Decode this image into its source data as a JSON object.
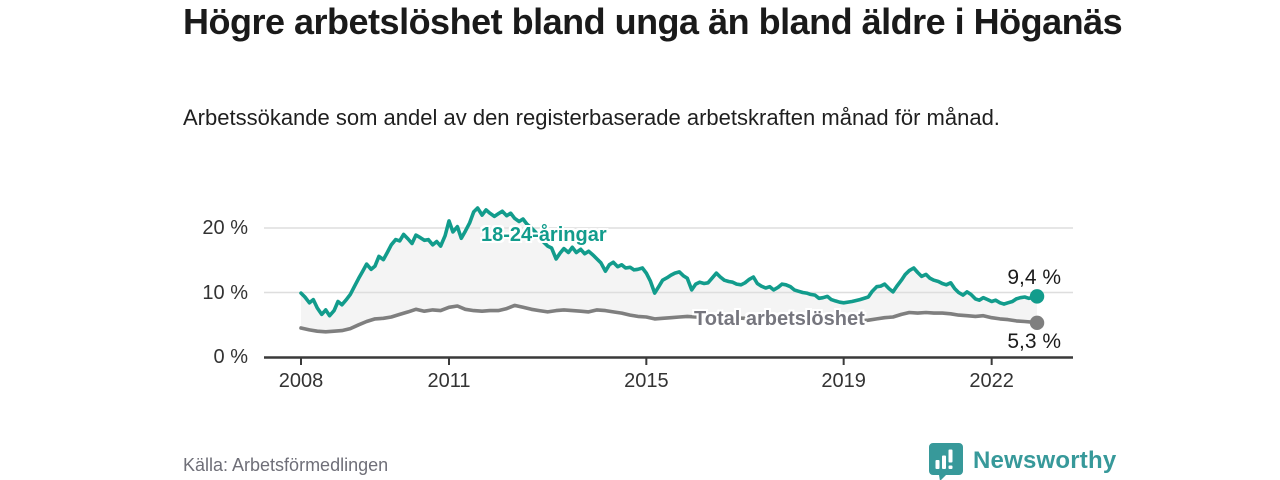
{
  "header": {
    "title": "Högre arbetslöshet bland unga än bland äldre i Höganäs",
    "subtitle": "Arbetssökande som andel av den registerbaserade arbetskraften månad för månad."
  },
  "footer": {
    "source": "Källa: Arbetsförmedlingen",
    "brand": "Newsworthy",
    "brand_color": "#37999a"
  },
  "colors": {
    "accent_teal": "#129c8c",
    "line_gray": "#7f7f7f",
    "fill_between": "#f4f4f4",
    "grid": "#dedede",
    "axis": "#3a3a3a"
  },
  "chart_data": {
    "type": "line",
    "title": "Högre arbetslöshet bland unga än bland äldre i Höganäs",
    "subtitle": "Arbetssökande som andel av den registerbaserade arbetskraften månad för månad.",
    "xlabel": "",
    "ylabel": "%",
    "grid": "horizontal",
    "legend_position": "inline-labels",
    "x_axis": {
      "ticks": [
        2008,
        2011,
        2015,
        2019,
        2022
      ],
      "tick_labels": [
        "2008",
        "2011",
        "2015",
        "2019",
        "2022"
      ],
      "range": [
        2007.25,
        2023.65
      ]
    },
    "y_axis": {
      "ticks": [
        0,
        10,
        20
      ],
      "tick_labels": [
        "0 %",
        "10 %",
        "20 %"
      ],
      "range": [
        0,
        23.5
      ]
    },
    "fill_between": "#f4f4f4",
    "series": [
      {
        "name": "18-24-åringar",
        "color": "#129c8c",
        "end_label": "9,4 %",
        "end_value": 9.4,
        "points": [
          [
            2008.0,
            9.9
          ],
          [
            2008.08,
            9.3
          ],
          [
            2008.17,
            8.4
          ],
          [
            2008.25,
            8.9
          ],
          [
            2008.33,
            7.6
          ],
          [
            2008.42,
            6.6
          ],
          [
            2008.5,
            7.3
          ],
          [
            2008.58,
            6.4
          ],
          [
            2008.67,
            7.2
          ],
          [
            2008.75,
            8.6
          ],
          [
            2008.83,
            8.1
          ],
          [
            2008.92,
            8.9
          ],
          [
            2009.0,
            9.7
          ],
          [
            2009.08,
            10.9
          ],
          [
            2009.17,
            12.2
          ],
          [
            2009.25,
            13.3
          ],
          [
            2009.33,
            14.4
          ],
          [
            2009.42,
            13.6
          ],
          [
            2009.5,
            14.1
          ],
          [
            2009.58,
            15.6
          ],
          [
            2009.67,
            15.1
          ],
          [
            2009.75,
            16.2
          ],
          [
            2009.83,
            17.4
          ],
          [
            2009.92,
            18.2
          ],
          [
            2010.0,
            18.0
          ],
          [
            2010.08,
            19.0
          ],
          [
            2010.17,
            18.3
          ],
          [
            2010.25,
            17.6
          ],
          [
            2010.33,
            18.9
          ],
          [
            2010.42,
            18.5
          ],
          [
            2010.5,
            18.1
          ],
          [
            2010.58,
            18.2
          ],
          [
            2010.67,
            17.4
          ],
          [
            2010.75,
            17.9
          ],
          [
            2010.83,
            17.2
          ],
          [
            2010.92,
            18.8
          ],
          [
            2011.0,
            21.1
          ],
          [
            2011.08,
            19.4
          ],
          [
            2011.17,
            20.2
          ],
          [
            2011.25,
            18.4
          ],
          [
            2011.33,
            19.5
          ],
          [
            2011.42,
            20.8
          ],
          [
            2011.5,
            22.5
          ],
          [
            2011.58,
            23.1
          ],
          [
            2011.67,
            22.0
          ],
          [
            2011.75,
            22.8
          ],
          [
            2011.83,
            22.3
          ],
          [
            2011.92,
            21.8
          ],
          [
            2012.0,
            22.2
          ],
          [
            2012.08,
            22.6
          ],
          [
            2012.17,
            21.9
          ],
          [
            2012.25,
            22.3
          ],
          [
            2012.33,
            21.5
          ],
          [
            2012.42,
            21.0
          ],
          [
            2012.5,
            21.4
          ],
          [
            2012.58,
            20.6
          ],
          [
            2012.67,
            20.0
          ],
          [
            2012.75,
            19.4
          ],
          [
            2012.83,
            18.6
          ],
          [
            2012.92,
            17.8
          ],
          [
            2013.0,
            17.2
          ],
          [
            2013.08,
            16.9
          ],
          [
            2013.17,
            15.2
          ],
          [
            2013.25,
            16.1
          ],
          [
            2013.33,
            16.8
          ],
          [
            2013.42,
            16.2
          ],
          [
            2013.5,
            17.0
          ],
          [
            2013.58,
            16.2
          ],
          [
            2013.67,
            16.7
          ],
          [
            2013.75,
            16.0
          ],
          [
            2013.83,
            16.4
          ],
          [
            2013.92,
            15.8
          ],
          [
            2014.0,
            15.2
          ],
          [
            2014.08,
            14.6
          ],
          [
            2014.17,
            13.3
          ],
          [
            2014.25,
            14.3
          ],
          [
            2014.33,
            14.7
          ],
          [
            2014.42,
            14.0
          ],
          [
            2014.5,
            14.3
          ],
          [
            2014.58,
            13.8
          ],
          [
            2014.67,
            13.9
          ],
          [
            2014.75,
            13.5
          ],
          [
            2014.83,
            13.6
          ],
          [
            2014.92,
            13.8
          ],
          [
            2015.0,
            13.0
          ],
          [
            2015.08,
            11.8
          ],
          [
            2015.17,
            9.9
          ],
          [
            2015.25,
            10.9
          ],
          [
            2015.33,
            11.9
          ],
          [
            2015.42,
            12.3
          ],
          [
            2015.5,
            12.7
          ],
          [
            2015.58,
            13.0
          ],
          [
            2015.67,
            13.2
          ],
          [
            2015.75,
            12.6
          ],
          [
            2015.83,
            12.2
          ],
          [
            2015.92,
            10.4
          ],
          [
            2016.0,
            11.3
          ],
          [
            2016.08,
            11.6
          ],
          [
            2016.17,
            11.4
          ],
          [
            2016.25,
            11.5
          ],
          [
            2016.33,
            12.2
          ],
          [
            2016.42,
            13.0
          ],
          [
            2016.5,
            12.4
          ],
          [
            2016.58,
            11.9
          ],
          [
            2016.67,
            11.7
          ],
          [
            2016.75,
            11.6
          ],
          [
            2016.83,
            11.3
          ],
          [
            2016.92,
            11.2
          ],
          [
            2017.0,
            11.5
          ],
          [
            2017.08,
            12.0
          ],
          [
            2017.17,
            12.4
          ],
          [
            2017.25,
            11.4
          ],
          [
            2017.33,
            11.0
          ],
          [
            2017.42,
            10.7
          ],
          [
            2017.5,
            10.9
          ],
          [
            2017.58,
            10.4
          ],
          [
            2017.67,
            10.8
          ],
          [
            2017.75,
            11.3
          ],
          [
            2017.83,
            11.2
          ],
          [
            2017.92,
            10.9
          ],
          [
            2018.0,
            10.4
          ],
          [
            2018.08,
            10.2
          ],
          [
            2018.17,
            10.0
          ],
          [
            2018.25,
            9.9
          ],
          [
            2018.33,
            9.7
          ],
          [
            2018.42,
            9.6
          ],
          [
            2018.5,
            9.1
          ],
          [
            2018.58,
            9.2
          ],
          [
            2018.67,
            9.4
          ],
          [
            2018.75,
            8.9
          ],
          [
            2018.83,
            8.7
          ],
          [
            2018.92,
            8.5
          ],
          [
            2019.0,
            8.4
          ],
          [
            2019.17,
            8.6
          ],
          [
            2019.33,
            8.9
          ],
          [
            2019.5,
            9.3
          ],
          [
            2019.58,
            10.2
          ],
          [
            2019.67,
            10.9
          ],
          [
            2019.75,
            11.0
          ],
          [
            2019.83,
            11.3
          ],
          [
            2019.92,
            10.6
          ],
          [
            2020.0,
            10.1
          ],
          [
            2020.08,
            11.0
          ],
          [
            2020.17,
            11.9
          ],
          [
            2020.25,
            12.8
          ],
          [
            2020.33,
            13.4
          ],
          [
            2020.42,
            13.8
          ],
          [
            2020.5,
            13.1
          ],
          [
            2020.58,
            12.5
          ],
          [
            2020.67,
            12.8
          ],
          [
            2020.75,
            12.2
          ],
          [
            2020.83,
            11.9
          ],
          [
            2020.92,
            11.7
          ],
          [
            2021.0,
            11.4
          ],
          [
            2021.08,
            11.2
          ],
          [
            2021.17,
            11.5
          ],
          [
            2021.25,
            10.6
          ],
          [
            2021.33,
            10.0
          ],
          [
            2021.42,
            9.6
          ],
          [
            2021.5,
            10.1
          ],
          [
            2021.58,
            9.7
          ],
          [
            2021.67,
            9.0
          ],
          [
            2021.75,
            8.8
          ],
          [
            2021.83,
            9.2
          ],
          [
            2021.92,
            8.9
          ],
          [
            2022.0,
            8.6
          ],
          [
            2022.08,
            8.8
          ],
          [
            2022.17,
            8.4
          ],
          [
            2022.25,
            8.2
          ],
          [
            2022.33,
            8.4
          ],
          [
            2022.42,
            8.6
          ],
          [
            2022.5,
            9.0
          ],
          [
            2022.58,
            9.2
          ],
          [
            2022.67,
            9.3
          ],
          [
            2022.75,
            9.1
          ],
          [
            2022.83,
            9.2
          ],
          [
            2022.92,
            9.4
          ]
        ]
      },
      {
        "name": "Total arbetslöshet",
        "color": "#7f7f7f",
        "end_label": "5,3 %",
        "end_value": 5.3,
        "points": [
          [
            2008.0,
            4.5
          ],
          [
            2008.17,
            4.2
          ],
          [
            2008.33,
            4.0
          ],
          [
            2008.5,
            3.9
          ],
          [
            2008.67,
            4.0
          ],
          [
            2008.83,
            4.1
          ],
          [
            2009.0,
            4.4
          ],
          [
            2009.17,
            5.0
          ],
          [
            2009.33,
            5.5
          ],
          [
            2009.5,
            5.9
          ],
          [
            2009.67,
            6.0
          ],
          [
            2009.83,
            6.2
          ],
          [
            2010.0,
            6.6
          ],
          [
            2010.17,
            7.0
          ],
          [
            2010.33,
            7.4
          ],
          [
            2010.5,
            7.1
          ],
          [
            2010.67,
            7.3
          ],
          [
            2010.83,
            7.2
          ],
          [
            2011.0,
            7.7
          ],
          [
            2011.17,
            7.9
          ],
          [
            2011.33,
            7.4
          ],
          [
            2011.5,
            7.2
          ],
          [
            2011.67,
            7.1
          ],
          [
            2011.83,
            7.2
          ],
          [
            2012.0,
            7.2
          ],
          [
            2012.17,
            7.5
          ],
          [
            2012.33,
            8.0
          ],
          [
            2012.5,
            7.7
          ],
          [
            2012.67,
            7.4
          ],
          [
            2012.83,
            7.2
          ],
          [
            2013.0,
            7.0
          ],
          [
            2013.17,
            7.2
          ],
          [
            2013.33,
            7.3
          ],
          [
            2013.5,
            7.2
          ],
          [
            2013.67,
            7.1
          ],
          [
            2013.83,
            7.0
          ],
          [
            2014.0,
            7.3
          ],
          [
            2014.17,
            7.2
          ],
          [
            2014.33,
            7.0
          ],
          [
            2014.5,
            6.8
          ],
          [
            2014.67,
            6.5
          ],
          [
            2014.83,
            6.3
          ],
          [
            2015.0,
            6.2
          ],
          [
            2015.17,
            5.9
          ],
          [
            2015.33,
            6.0
          ],
          [
            2015.5,
            6.1
          ],
          [
            2015.67,
            6.2
          ],
          [
            2015.83,
            6.3
          ],
          [
            2016.0,
            6.2
          ],
          [
            2016.33,
            6.0
          ],
          [
            2016.67,
            6.1
          ],
          [
            2017.0,
            6.0
          ],
          [
            2017.33,
            6.2
          ],
          [
            2017.67,
            6.1
          ],
          [
            2018.0,
            5.9
          ],
          [
            2018.33,
            5.8
          ],
          [
            2018.67,
            5.8
          ],
          [
            2019.0,
            5.7
          ],
          [
            2019.33,
            5.6
          ],
          [
            2019.5,
            5.7
          ],
          [
            2019.67,
            5.9
          ],
          [
            2019.83,
            6.1
          ],
          [
            2020.0,
            6.2
          ],
          [
            2020.17,
            6.6
          ],
          [
            2020.33,
            6.9
          ],
          [
            2020.5,
            6.8
          ],
          [
            2020.67,
            6.9
          ],
          [
            2020.83,
            6.8
          ],
          [
            2021.0,
            6.8
          ],
          [
            2021.17,
            6.7
          ],
          [
            2021.33,
            6.5
          ],
          [
            2021.5,
            6.4
          ],
          [
            2021.67,
            6.3
          ],
          [
            2021.83,
            6.4
          ],
          [
            2022.0,
            6.1
          ],
          [
            2022.17,
            5.9
          ],
          [
            2022.33,
            5.8
          ],
          [
            2022.5,
            5.6
          ],
          [
            2022.67,
            5.5
          ],
          [
            2022.83,
            5.4
          ],
          [
            2022.92,
            5.3
          ]
        ]
      }
    ]
  }
}
